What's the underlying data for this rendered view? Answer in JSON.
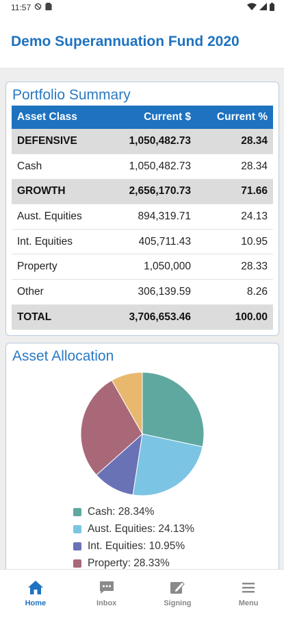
{
  "status_bar": {
    "time": "11:57"
  },
  "header": {
    "title": "Demo Superannuation Fund 2020"
  },
  "portfolio": {
    "title": "Portfolio Summary",
    "columns": [
      "Asset Class",
      "Current $",
      "Current %"
    ],
    "rows": [
      {
        "type": "group",
        "cells": [
          "DEFENSIVE",
          "1,050,482.73",
          "28.34"
        ]
      },
      {
        "type": "item",
        "cells": [
          "Cash",
          "1,050,482.73",
          "28.34"
        ]
      },
      {
        "type": "group",
        "cells": [
          "GROWTH",
          "2,656,170.73",
          "71.66"
        ]
      },
      {
        "type": "item",
        "cells": [
          "Aust. Equities",
          "894,319.71",
          "24.13"
        ]
      },
      {
        "type": "item",
        "cells": [
          "Int. Equities",
          "405,711.43",
          "10.95"
        ]
      },
      {
        "type": "item",
        "cells": [
          "Property",
          "1,050,000",
          "28.33"
        ]
      },
      {
        "type": "item",
        "cells": [
          "Other",
          "306,139.59",
          "8.26"
        ]
      },
      {
        "type": "total",
        "cells": [
          "TOTAL",
          "3,706,653.46",
          "100.00"
        ]
      }
    ]
  },
  "allocation": {
    "title": "Asset Allocation",
    "legend": [
      {
        "label": "Cash: 28.34%",
        "color": "#5fa8a0"
      },
      {
        "label": "Aust. Equities: 24.13%",
        "color": "#7cc4e4"
      },
      {
        "label": "Int. Equities: 10.95%",
        "color": "#6a72b6"
      },
      {
        "label": "Property: 28.33%",
        "color": "#a86878"
      }
    ]
  },
  "chart_data": {
    "type": "pie",
    "categories": [
      "Cash",
      "Aust. Equities",
      "Int. Equities",
      "Property",
      "Other"
    ],
    "values": [
      28.34,
      24.13,
      10.95,
      28.33,
      8.26
    ],
    "colors": [
      "#5fa8a0",
      "#7cc4e4",
      "#6a72b6",
      "#a86878",
      "#e8b86e"
    ]
  },
  "bottom_nav": {
    "items": [
      {
        "label": "Home",
        "icon": "home-icon",
        "active": true
      },
      {
        "label": "Inbox",
        "icon": "chat-icon",
        "active": false
      },
      {
        "label": "Signing",
        "icon": "sign-icon",
        "active": false
      },
      {
        "label": "Menu",
        "icon": "menu-icon",
        "active": false
      }
    ]
  }
}
